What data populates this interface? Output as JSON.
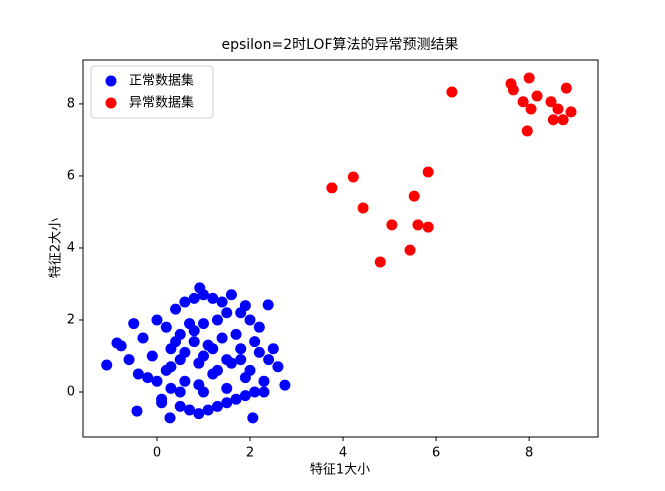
{
  "chart_data": {
    "type": "scatter",
    "title": "epsilon=2时LOF算法的异常预测结果",
    "xlabel": "特征1大小",
    "ylabel": "特征2大小",
    "xlim": [
      -1.59,
      9.48
    ],
    "ylim": [
      -1.25,
      9.22
    ],
    "xticks": [
      0,
      2,
      4,
      6,
      8
    ],
    "yticks": [
      0,
      2,
      4,
      6,
      8
    ],
    "legend": "upper left",
    "series": [
      {
        "name": "正常数据集",
        "color": "#0000ff",
        "x": [
          -1.08,
          -0.86,
          -0.77,
          -0.43,
          0.92,
          2.39,
          2.75,
          2.06,
          0.28,
          -0.6,
          -0.3,
          -0.2,
          0.0,
          0.1,
          0.2,
          0.3,
          0.4,
          0.5,
          0.6,
          0.7,
          0.8,
          0.9,
          1.0,
          1.1,
          1.2,
          1.3,
          1.4,
          1.5,
          1.6,
          1.7,
          1.8,
          1.9,
          2.0,
          2.1,
          2.2,
          2.3,
          2.5,
          2.6,
          -0.1,
          0.2,
          0.4,
          0.6,
          0.8,
          1.0,
          1.2,
          1.4,
          1.6,
          1.8,
          2.0,
          2.2,
          0.0,
          0.3,
          0.5,
          0.7,
          0.9,
          1.1,
          1.3,
          1.5,
          1.7,
          1.9,
          2.1,
          2.4,
          -0.4,
          -0.5,
          0.1,
          0.5,
          1.0,
          1.5,
          1.9,
          2.3,
          0.6,
          0.9,
          1.2,
          1.5,
          0.3,
          0.8,
          1.3,
          1.8,
          0.5,
          1.0
        ],
        "y": [
          0.75,
          1.36,
          1.28,
          -0.53,
          2.89,
          2.42,
          0.19,
          -0.72,
          -0.72,
          0.9,
          1.5,
          0.4,
          2.0,
          -0.2,
          1.8,
          0.1,
          2.3,
          -0.4,
          2.5,
          -0.5,
          2.6,
          -0.6,
          2.7,
          -0.5,
          2.6,
          -0.4,
          2.5,
          -0.3,
          2.7,
          -0.2,
          2.2,
          -0.1,
          2.0,
          0.0,
          1.8,
          0.3,
          1.2,
          0.7,
          1.0,
          0.6,
          1.4,
          0.3,
          1.7,
          1.0,
          0.5,
          1.5,
          0.8,
          1.2,
          0.6,
          1.1,
          0.3,
          1.2,
          0.9,
          1.9,
          0.2,
          1.3,
          2.0,
          0.1,
          1.6,
          0.4,
          1.4,
          0.9,
          0.5,
          1.9,
          -0.3,
          0.0,
          0.0,
          2.2,
          2.4,
          0.0,
          1.1,
          0.8,
          1.2,
          0.9,
          0.7,
          1.4,
          0.6,
          0.9,
          1.6,
          1.9
        ]
      },
      {
        "name": "异常数据集",
        "color": "#ff0000",
        "x": [
          7.61,
          7.66,
          8.0,
          7.87,
          8.17,
          8.04,
          8.47,
          8.8,
          8.62,
          8.52,
          8.73,
          8.9,
          7.96,
          6.34,
          3.76,
          4.22,
          4.43,
          5.83,
          5.53,
          5.05,
          5.61,
          5.83,
          5.44,
          4.8
        ],
        "y": [
          8.56,
          8.39,
          8.72,
          8.06,
          8.22,
          7.86,
          8.06,
          8.44,
          7.86,
          7.56,
          7.56,
          7.78,
          7.25,
          8.33,
          5.67,
          5.97,
          5.11,
          6.11,
          5.44,
          4.64,
          4.64,
          4.58,
          3.94,
          3.61
        ]
      }
    ]
  }
}
